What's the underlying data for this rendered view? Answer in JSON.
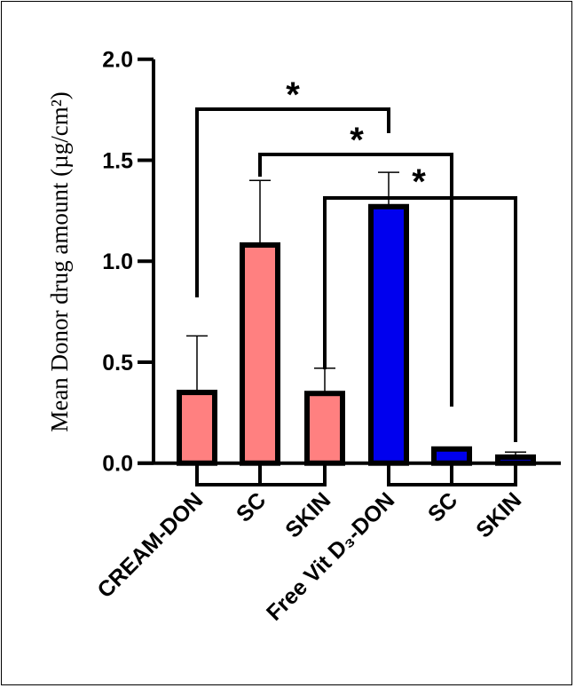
{
  "chart_data": {
    "type": "bar",
    "title": "",
    "ylabel": "Mean Donor drug amount (µg/cm²)",
    "xlabel": "",
    "ylim": [
      0,
      2.0
    ],
    "yticks": [
      "0.0",
      "0.5",
      "1.0",
      "1.5",
      "2.0"
    ],
    "ytick_values": [
      0,
      0.5,
      1.0,
      1.5,
      2.0
    ],
    "categories": [
      "CREAM-DON",
      "SC",
      "SKIN",
      "Free Vit D₃-DON",
      "SC",
      "SKIN"
    ],
    "values": [
      0.35,
      1.08,
      0.345,
      1.27,
      0.07,
      0.03
    ],
    "errors_upper": [
      0.63,
      1.4,
      0.47,
      1.44,
      0.075,
      0.055
    ],
    "colors": [
      "#ff8080",
      "#ff8080",
      "#ff8080",
      "#0000ee",
      "#0000ee",
      "#0000ee"
    ],
    "groups": [
      {
        "name": "CREAM",
        "members": [
          0,
          1,
          2
        ]
      },
      {
        "name": "Free Vit D3",
        "members": [
          3,
          4,
          5
        ]
      }
    ],
    "significance": [
      {
        "from": 0,
        "to": 3,
        "label": "*"
      },
      {
        "from": 1,
        "to": 4,
        "label": "*"
      },
      {
        "from": 2,
        "to": 5,
        "label": "*"
      }
    ],
    "grid": false,
    "legend": "none"
  }
}
